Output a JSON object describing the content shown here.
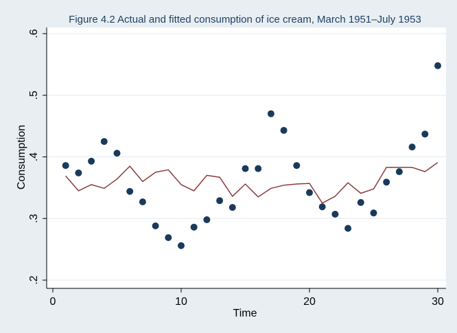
{
  "chart_data": {
    "type": "scatter",
    "title": "Figure 4.2 Actual and fitted consumption of ice cream, March 1951–July 1953",
    "xlabel": "Time",
    "ylabel": "Consumption",
    "xlim": [
      0,
      30
    ],
    "ylim": [
      0.2,
      0.6
    ],
    "grid": true,
    "xticks": [
      0,
      10,
      20,
      30
    ],
    "xtick_labels": [
      "0",
      "10",
      "20",
      "30"
    ],
    "yticks": [
      0.2,
      0.3,
      0.4,
      0.5,
      0.6
    ],
    "ytick_labels": [
      ".2",
      ".3",
      ".4",
      ".5",
      ".6"
    ],
    "series": [
      {
        "mark": "point",
        "color": "#1a3a5c",
        "x": [
          1,
          2,
          3,
          4,
          5,
          6,
          7,
          8,
          9,
          10,
          11,
          12,
          13,
          14,
          15,
          16,
          17,
          18,
          19,
          20,
          21,
          22,
          23,
          24,
          25,
          26,
          27,
          28,
          29,
          30
        ],
        "y": [
          0.386,
          0.374,
          0.393,
          0.425,
          0.406,
          0.344,
          0.327,
          0.288,
          0.269,
          0.256,
          0.286,
          0.298,
          0.329,
          0.318,
          0.381,
          0.381,
          0.47,
          0.443,
          0.386,
          0.342,
          0.319,
          0.307,
          0.284,
          0.326,
          0.309,
          0.359,
          0.376,
          0.416,
          0.437,
          0.548
        ]
      },
      {
        "mark": "line",
        "color": "#8b3a3a",
        "x": [
          1,
          2,
          3,
          4,
          5,
          6,
          7,
          8,
          9,
          10,
          11,
          12,
          13,
          14,
          15,
          16,
          17,
          18,
          19,
          20,
          21,
          22,
          23,
          24,
          25,
          26,
          27,
          28,
          29,
          30
        ],
        "y": [
          0.369,
          0.345,
          0.355,
          0.349,
          0.364,
          0.385,
          0.36,
          0.375,
          0.379,
          0.355,
          0.345,
          0.37,
          0.367,
          0.336,
          0.356,
          0.335,
          0.349,
          0.354,
          0.356,
          0.357,
          0.325,
          0.336,
          0.358,
          0.341,
          0.348,
          0.383,
          0.383,
          0.383,
          0.376,
          0.391
        ]
      }
    ]
  }
}
